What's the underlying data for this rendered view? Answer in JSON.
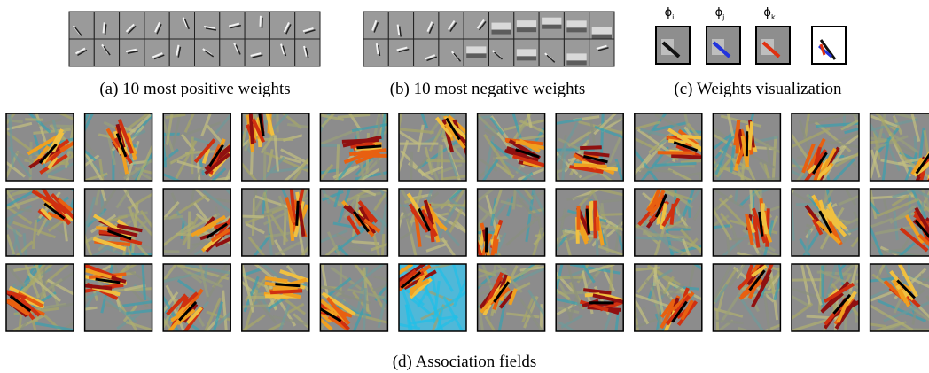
{
  "panels": {
    "a": {
      "caption": "(a)  10 most positive weights"
    },
    "b": {
      "caption": "(b)  10 most negative weights"
    },
    "c": {
      "caption": "(c)  Weights visualization",
      "weight_labels": [
        {
          "symbol": "ϕ",
          "sub": "i"
        },
        {
          "symbol": "ϕ",
          "sub": "j"
        },
        {
          "symbol": "ϕ",
          "sub": "k"
        }
      ]
    },
    "d": {
      "caption": "(d)  Association fields"
    }
  }
}
